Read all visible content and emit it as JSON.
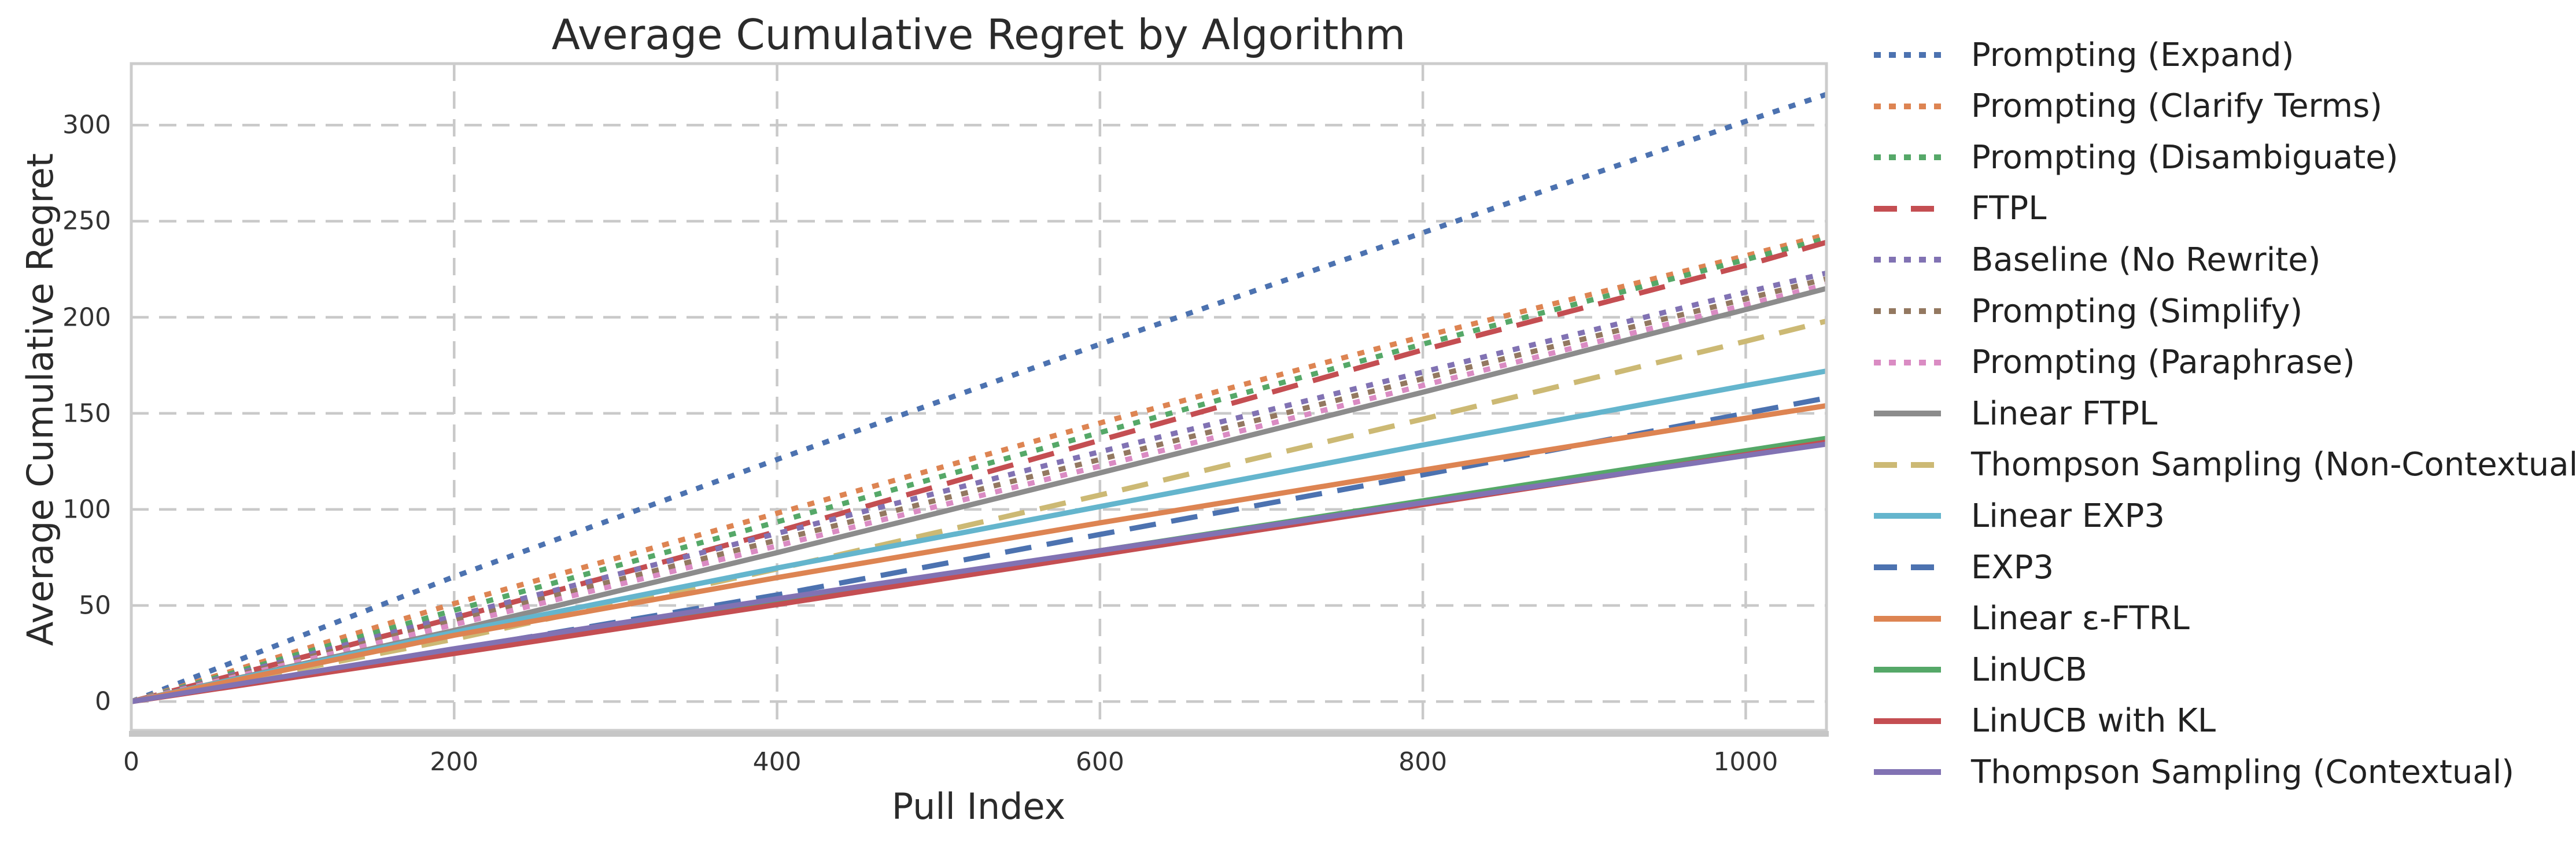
{
  "title": "Average Cumulative Regret by Algorithm",
  "axes": {
    "xlabel": "Pull Index",
    "ylabel": "Average Cumulative Regret",
    "xticks": [
      0,
      200,
      400,
      600,
      800,
      1000
    ],
    "yticks": [
      0,
      50,
      100,
      150,
      200,
      250,
      300
    ],
    "xlim": [
      0,
      1050
    ],
    "ylim": [
      -15,
      332
    ]
  },
  "styles": {
    "background": "#ffffff",
    "grid_color": "#c9c9c9",
    "spine_color": "#cccccc",
    "bottom_spine_color": "#c6c6c6",
    "text_color": "#2b2b2b",
    "tick_color": "#333333"
  },
  "chart_data": {
    "type": "line",
    "title": "Average Cumulative Regret by Algorithm",
    "xlabel": "Pull Index",
    "ylabel": "Average Cumulative Regret",
    "xlim": [
      0,
      1050
    ],
    "ylim": [
      -15,
      332
    ],
    "grid": true,
    "grid_style": "dashed",
    "legend_position": "right",
    "x": [
      0,
      200,
      400,
      600,
      800,
      1000,
      1050
    ],
    "series": [
      {
        "name": "Prompting (Expand)",
        "color": "#4C72B0",
        "linestyle": "dotted",
        "values": [
          0,
          65,
          126,
          186,
          244,
          302,
          316
        ]
      },
      {
        "name": "Prompting (Clarify Terms)",
        "color": "#DD8452",
        "linestyle": "dotted",
        "values": [
          0,
          51,
          98,
          145,
          190,
          232,
          243
        ]
      },
      {
        "name": "Prompting (Disambiguate)",
        "color": "#55A868",
        "linestyle": "dotted",
        "values": [
          0,
          47.5,
          93.5,
          140,
          186,
          230,
          241
        ]
      },
      {
        "name": "FTPL",
        "color": "#C44E52",
        "linestyle": "dashed",
        "values": [
          0,
          43.5,
          88.5,
          136,
          183,
          227,
          239
        ]
      },
      {
        "name": "Baseline (No Rewrite)",
        "color": "#8172B3",
        "linestyle": "dotted",
        "values": [
          0,
          44.5,
          87.5,
          130,
          171.5,
          213,
          223
        ]
      },
      {
        "name": "Prompting (Simplify)",
        "color": "#937860",
        "linestyle": "dotted",
        "values": [
          0,
          42,
          84,
          126,
          168,
          209.5,
          220
        ]
      },
      {
        "name": "Prompting (Paraphrase)",
        "color": "#DA8BC3",
        "linestyle": "dotted",
        "values": [
          0,
          40,
          81,
          122.5,
          164.5,
          206.5,
          217
        ]
      },
      {
        "name": "Linear FTPL",
        "color": "#8C8C8C",
        "linestyle": "solid",
        "values": [
          0,
          37,
          77.5,
          119,
          161,
          204,
          215
        ]
      },
      {
        "name": "Thompson Sampling (Non-Contextual)",
        "color": "#CCB974",
        "linestyle": "dashed",
        "values": [
          0,
          32.5,
          69,
          107.5,
          147,
          187.5,
          198
        ]
      },
      {
        "name": "Linear EXP3",
        "color": "#64B5CD",
        "linestyle": "solid",
        "values": [
          0,
          36,
          69.5,
          101.5,
          133.5,
          164.5,
          172
        ]
      },
      {
        "name": "EXP3",
        "color": "#4C72B0",
        "linestyle": "dashed",
        "values": [
          0,
          27,
          55.5,
          87,
          118,
          150,
          158
        ]
      },
      {
        "name": "Linear ε-FTRL",
        "color": "#DD8452",
        "linestyle": "solid",
        "values": [
          0,
          34.5,
          64.5,
          93,
          120.5,
          147.5,
          154
        ]
      },
      {
        "name": "LinUCB",
        "color": "#55A868",
        "linestyle": "solid",
        "values": [
          0,
          26,
          52,
          78.5,
          104.5,
          130.5,
          137
        ]
      },
      {
        "name": "LinUCB with KL",
        "color": "#C44E52",
        "linestyle": "solid",
        "values": [
          0,
          25,
          50.5,
          76.5,
          102.5,
          128.5,
          135
        ]
      },
      {
        "name": "Thompson Sampling (Contextual)",
        "color": "#8172B3",
        "linestyle": "solid",
        "values": [
          0,
          27.5,
          53.5,
          78.5,
          103.5,
          128,
          134
        ]
      }
    ]
  }
}
